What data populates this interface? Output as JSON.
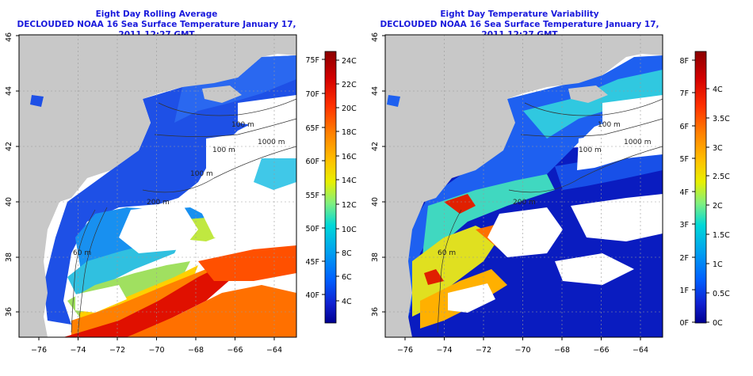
{
  "colors": {
    "title": "#1a1adc",
    "land": "#c8c8c8",
    "cloud": "#ffffff",
    "frame": "#000000"
  },
  "left_panel": {
    "title": "Eight Day Rolling Average",
    "subtitle": "DECLOUDED NOAA 16 Sea Surface Temperature January 17, 2011 12:27 GMT",
    "contour_labels": [
      "100 m",
      "1000 m",
      "100 m",
      "200 m",
      "60 m",
      "100 m"
    ],
    "colorbar": {
      "left_labels": [
        "75F",
        "70F",
        "65F",
        "60F",
        "55F",
        "50F",
        "45F",
        "40F"
      ],
      "right_labels": [
        "24C",
        "22C",
        "20C",
        "18C",
        "16C",
        "14C",
        "12C",
        "10C",
        "8C",
        "6C",
        "4C"
      ],
      "palette": [
        "#8b0000",
        "#d40000",
        "#ff3000",
        "#ff7800",
        "#ffb000",
        "#ffe000",
        "#c8f000",
        "#60e890",
        "#00d8d8",
        "#00a8f0",
        "#0070ff",
        "#1830e0",
        "#0010a0"
      ]
    }
  },
  "right_panel": {
    "title": "Eight Day Temperature Variability",
    "subtitle": "DECLOUDED NOAA 16 Sea Surface Temperature January 17, 2011 12:27 GMT",
    "contour_labels": [
      "100 m",
      "1000 m",
      "100 m",
      "200 m",
      "60 m"
    ],
    "colorbar": {
      "left_labels": [
        "8F",
        "7F",
        "6F",
        "5F",
        "4F",
        "3F",
        "2F",
        "1F",
        "0F"
      ],
      "right_labels": [
        "4C",
        "3.5C",
        "3C",
        "2.5C",
        "2C",
        "1.5C",
        "1C",
        "0.5C",
        "0C"
      ],
      "palette": [
        "#8b0000",
        "#d40000",
        "#ff3000",
        "#ff7800",
        "#ffb000",
        "#ffe000",
        "#c8f000",
        "#60e890",
        "#00d8d8",
        "#00a8f0",
        "#0070ff",
        "#1830e0",
        "#0010a0"
      ]
    }
  },
  "axes": {
    "y_ticks": [
      "36",
      "38",
      "40",
      "42",
      "44",
      "46"
    ],
    "x_ticks": [
      "−76",
      "−74",
      "−72",
      "−70",
      "−68",
      "−66",
      "−64"
    ]
  }
}
